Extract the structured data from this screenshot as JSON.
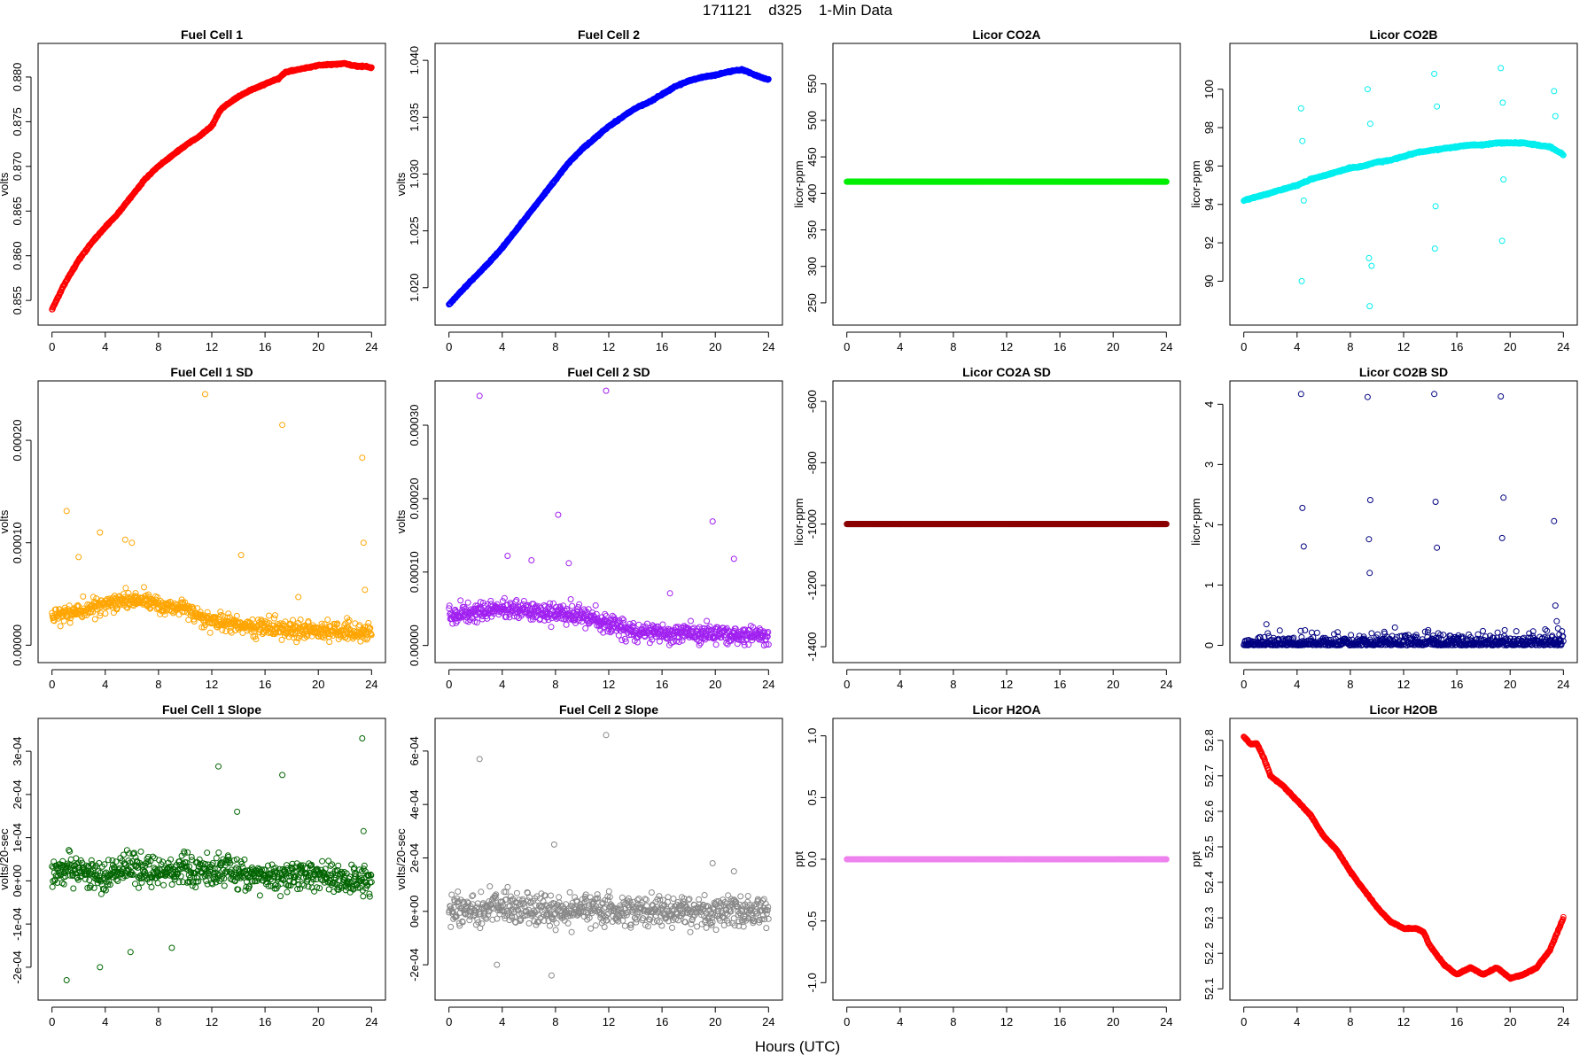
{
  "figure": {
    "title": "171121    d325    1-Min Data",
    "xlabel": "Hours (UTC)"
  },
  "chart_data": [
    {
      "type": "scatter",
      "title": "Fuel Cell 1",
      "xlabel": "",
      "ylabel": "volts",
      "color": "#ff0000",
      "xlim": [
        0,
        24
      ],
      "xticks": [
        0,
        4,
        8,
        12,
        16,
        20,
        24
      ],
      "ylim": [
        0.8535,
        0.8825
      ],
      "yticks": [
        0.855,
        0.86,
        0.865,
        0.87,
        0.875,
        0.88
      ],
      "ytick_labels": [
        "0.855",
        "0.860",
        "0.865",
        "0.870",
        "0.875",
        "0.880"
      ],
      "series": [
        {
          "x": [
            0,
            1,
            2,
            3,
            4,
            5,
            6,
            7,
            8,
            9,
            10,
            11,
            12,
            12.6,
            13,
            14,
            15,
            16,
            17,
            17.5,
            18,
            19,
            20,
            21,
            22,
            22.5,
            23,
            23.5,
            24
          ],
          "y": [
            0.854,
            0.857,
            0.8595,
            0.8615,
            0.8632,
            0.8648,
            0.8667,
            0.8686,
            0.87,
            0.8712,
            0.8723,
            0.8733,
            0.8745,
            0.8762,
            0.8768,
            0.8778,
            0.8786,
            0.8792,
            0.8798,
            0.8805,
            0.8807,
            0.881,
            0.8813,
            0.8814,
            0.8815,
            0.8813,
            0.8812,
            0.8812,
            0.881
          ]
        }
      ]
    },
    {
      "type": "scatter",
      "title": "Fuel Cell 2",
      "xlabel": "",
      "ylabel": "volts",
      "color": "#0000ff",
      "xlim": [
        0,
        24
      ],
      "xticks": [
        0,
        4,
        8,
        12,
        16,
        20,
        24
      ],
      "ylim": [
        1.0177,
        1.0405
      ],
      "yticks": [
        1.02,
        1.025,
        1.03,
        1.035,
        1.04
      ],
      "ytick_labels": [
        "1.020",
        "1.025",
        "1.030",
        "1.035",
        "1.040"
      ],
      "series": [
        {
          "x": [
            0,
            1,
            2,
            3,
            4,
            5,
            6,
            7,
            8,
            9,
            10,
            11,
            12,
            13,
            14,
            15,
            16,
            17,
            18,
            19,
            20,
            21,
            22,
            23,
            24
          ],
          "y": [
            1.0185,
            1.0198,
            1.021,
            1.0222,
            1.0235,
            1.025,
            1.0265,
            1.028,
            1.0295,
            1.031,
            1.0322,
            1.0332,
            1.0342,
            1.035,
            1.0358,
            1.0363,
            1.037,
            1.0377,
            1.0382,
            1.0385,
            1.0387,
            1.039,
            1.0392,
            1.0387,
            1.0383
          ]
        }
      ]
    },
    {
      "type": "scatter",
      "title": "Licor CO2A",
      "xlabel": "",
      "ylabel": "licor-ppm",
      "color": "#00ee00",
      "xlim": [
        0,
        24
      ],
      "xticks": [
        0,
        4,
        8,
        12,
        16,
        20,
        24
      ],
      "ylim": [
        235,
        590
      ],
      "yticks": [
        250,
        300,
        350,
        400,
        450,
        500,
        550
      ],
      "ytick_labels": [
        "250",
        "300",
        "350",
        "400",
        "450",
        "500",
        "550"
      ],
      "series": [
        {
          "x": [
            0,
            24
          ],
          "y": [
            416,
            416
          ]
        }
      ]
    },
    {
      "type": "scatter",
      "title": "Licor CO2B",
      "xlabel": "",
      "ylabel": "licor-ppm",
      "color": "#00eeee",
      "xlim": [
        0,
        24
      ],
      "xticks": [
        0,
        4,
        8,
        12,
        16,
        20,
        24
      ],
      "ylim": [
        88.3,
        101.8
      ],
      "yticks": [
        90,
        92,
        94,
        96,
        98,
        100
      ],
      "ytick_labels": [
        "90",
        "92",
        "94",
        "96",
        "98",
        "100"
      ],
      "series": [
        {
          "x": [
            0,
            1,
            2,
            3,
            4,
            5,
            6,
            7,
            8,
            9,
            10,
            11,
            12,
            13,
            14,
            15,
            16,
            17,
            18,
            19,
            20,
            21,
            22,
            23,
            24
          ],
          "y": [
            94.2,
            94.4,
            94.6,
            94.8,
            95.0,
            95.3,
            95.5,
            95.7,
            95.9,
            96.0,
            96.2,
            96.3,
            96.5,
            96.7,
            96.8,
            96.9,
            97.0,
            97.1,
            97.1,
            97.2,
            97.2,
            97.2,
            97.1,
            97.0,
            96.6
          ]
        }
      ],
      "outliers": {
        "x": [
          4.3,
          4.35,
          4.4,
          4.5,
          9.3,
          9.4,
          9.45,
          9.5,
          9.6,
          14.3,
          14.35,
          14.4,
          14.5,
          19.3,
          19.4,
          19.45,
          19.5,
          23.3,
          23.4
        ],
        "y": [
          99.0,
          90.0,
          97.3,
          94.2,
          100.0,
          91.2,
          88.7,
          98.2,
          90.8,
          100.8,
          91.7,
          93.9,
          99.1,
          101.1,
          92.1,
          99.3,
          95.3,
          99.9,
          98.6
        ]
      }
    },
    {
      "type": "scatter",
      "title": "Fuel Cell 1 SD",
      "xlabel": "",
      "ylabel": "volts",
      "color": "#ffa500",
      "xlim": [
        0,
        24
      ],
      "xticks": [
        0,
        4,
        8,
        12,
        16,
        20,
        24
      ],
      "ylim": [
        -6e-06,
        0.000247
      ],
      "yticks": [
        0.0,
        0.0001,
        0.0002
      ],
      "ytick_labels": [
        "0.00000",
        "0.00010",
        "0.00020"
      ],
      "series": [
        {
          "x": [
            0,
            2,
            4,
            6,
            8,
            10,
            12,
            14,
            16,
            18,
            20,
            22,
            24
          ],
          "y": [
            3e-05,
            3.3e-05,
            4e-05,
            4.5e-05,
            4e-05,
            3.5e-05,
            2.5e-05,
            2e-05,
            1.7e-05,
            1.5e-05,
            1.4e-05,
            1.3e-05,
            1.2e-05
          ]
        }
      ],
      "outliers": {
        "x": [
          1.1,
          2.0,
          3.6,
          5.5,
          6.0,
          11.5,
          14.2,
          17.3,
          18.5,
          23.3,
          23.4,
          23.5
        ],
        "y": [
          0.000131,
          8.6e-05,
          0.00011,
          0.000103,
          0.0001,
          0.000245,
          8.8e-05,
          0.000215,
          4.7e-05,
          0.000183,
          0.0001,
          5.4e-05
        ]
      }
    },
    {
      "type": "scatter",
      "title": "Fuel Cell 2 SD",
      "xlabel": "",
      "ylabel": "volts",
      "color": "#a020f0",
      "xlim": [
        0,
        24
      ],
      "xticks": [
        0,
        4,
        8,
        12,
        16,
        20,
        24
      ],
      "ylim": [
        -8e-06,
        0.000345
      ],
      "yticks": [
        0.0,
        0.0001,
        0.0002,
        0.0003
      ],
      "ytick_labels": [
        "0.00000",
        "0.00010",
        "0.00020",
        "0.00030"
      ],
      "series": [
        {
          "x": [
            0,
            2,
            4,
            6,
            8,
            10,
            12,
            14,
            16,
            18,
            20,
            22,
            24
          ],
          "y": [
            4e-05,
            4.5e-05,
            5e-05,
            4.8e-05,
            4.5e-05,
            4e-05,
            3e-05,
            2e-05,
            1.8e-05,
            1.6e-05,
            1.5e-05,
            1.4e-05,
            1.3e-05
          ]
        }
      ],
      "outliers": {
        "x": [
          2.3,
          4.4,
          6.2,
          8.2,
          9.0,
          11.8,
          16.6,
          19.8,
          21.4
        ],
        "y": [
          0.00034,
          0.000122,
          0.000116,
          0.000178,
          0.000112,
          0.000347,
          7.1e-05,
          0.000169,
          0.000118
        ]
      }
    },
    {
      "type": "scatter",
      "title": "Licor CO2A SD",
      "xlabel": "",
      "ylabel": "licor-ppm",
      "color": "#8b0000",
      "xlim": [
        0,
        24
      ],
      "xticks": [
        0,
        4,
        8,
        12,
        16,
        20,
        24
      ],
      "ylim": [
        -1415,
        -570
      ],
      "yticks": [
        -1400,
        -1200,
        -1000,
        -800,
        -600
      ],
      "ytick_labels": [
        "-1400",
        "-1200",
        "-1000",
        "-800",
        "-600"
      ],
      "series": [
        {
          "x": [
            0,
            24
          ],
          "y": [
            -1000,
            -1000
          ]
        }
      ]
    },
    {
      "type": "scatter",
      "title": "Licor CO2B SD",
      "xlabel": "",
      "ylabel": "licor-ppm",
      "color": "#000080",
      "xlim": [
        0,
        24
      ],
      "xticks": [
        0,
        4,
        8,
        12,
        16,
        20,
        24
      ],
      "ylim": [
        -0.1,
        4.2
      ],
      "yticks": [
        0,
        1,
        2,
        3,
        4
      ],
      "ytick_labels": [
        "0",
        "1",
        "2",
        "3",
        "4"
      ],
      "series": [
        {
          "x": [
            0,
            4,
            8,
            12,
            16,
            20,
            24
          ],
          "y": [
            0.02,
            0.03,
            0.03,
            0.04,
            0.04,
            0.04,
            0.05
          ]
        }
      ],
      "outliers": {
        "x": [
          1.7,
          1.8,
          4.3,
          4.4,
          4.5,
          4.6,
          9.3,
          9.4,
          9.45,
          9.5,
          9.6,
          14.3,
          14.4,
          14.5,
          14.6,
          19.3,
          19.4,
          19.5,
          23.3,
          23.4,
          23.5,
          23.6,
          23.7
        ],
        "y": [
          0.35,
          0.2,
          4.17,
          2.28,
          1.64,
          0.25,
          4.12,
          1.76,
          1.2,
          2.41,
          0.2,
          4.17,
          2.38,
          1.62,
          0.2,
          4.13,
          1.78,
          2.45,
          2.06,
          0.66,
          0.4,
          0.28,
          0.18
        ]
      }
    },
    {
      "type": "scatter",
      "title": "Fuel Cell 1 Slope",
      "xlabel": "",
      "ylabel": "volts/20-sec",
      "color": "#006400",
      "xlim": [
        0,
        24
      ],
      "xticks": [
        0,
        4,
        8,
        12,
        16,
        20,
        24
      ],
      "ylim": [
        -0.00025,
        0.00035
      ],
      "yticks": [
        -0.0002,
        -0.0001,
        0.0,
        0.0001,
        0.0002,
        0.0003
      ],
      "ytick_labels": [
        "-2e-04",
        "-1e-04",
        "0e+00",
        "1e-04",
        "2e-04",
        "3e-04"
      ],
      "series": [
        {
          "x": [
            0,
            2,
            4,
            6,
            8,
            10,
            12,
            14,
            16,
            18,
            20,
            22,
            24
          ],
          "y": [
            2e-05,
            3e-05,
            1e-05,
            4e-05,
            1e-05,
            3e-05,
            2e-05,
            2e-05,
            1e-05,
            1e-05,
            1e-05,
            5e-06,
            5e-06
          ]
        }
      ],
      "outliers": {
        "x": [
          1.1,
          3.6,
          12.5,
          13.9,
          17.3,
          23.3,
          23.4,
          5.9,
          9.0
        ],
        "y": [
          -0.00023,
          -0.0002,
          0.000265,
          0.00016,
          0.000245,
          0.00033,
          0.000115,
          -0.000165,
          -0.000155
        ]
      }
    },
    {
      "type": "scatter",
      "title": "Fuel Cell 2 Slope",
      "xlabel": "",
      "ylabel": "volts/20-sec",
      "color": "#888888",
      "xlim": [
        0,
        24
      ],
      "xticks": [
        0,
        4,
        8,
        12,
        16,
        20,
        24
      ],
      "ylim": [
        -0.00029,
        0.00068
      ],
      "yticks": [
        -0.0002,
        0.0,
        0.0002,
        0.0004,
        0.0006
      ],
      "ytick_labels": [
        "-2e-04",
        "0e+00",
        "2e-04",
        "4e-04",
        "6e-04"
      ],
      "series": [
        {
          "x": [
            0,
            2,
            4,
            6,
            8,
            10,
            12,
            14,
            16,
            18,
            20,
            22,
            24
          ],
          "y": [
            0.0,
            1e-05,
            2e-05,
            1e-05,
            0.0,
            1e-05,
            0.0,
            0.0,
            0.0,
            0.0,
            0.0,
            0.0,
            0.0
          ]
        }
      ],
      "outliers": {
        "x": [
          2.3,
          11.8,
          7.9,
          19.8,
          21.4,
          7.7,
          3.6
        ],
        "y": [
          0.00057,
          0.00066,
          0.00025,
          0.00018,
          0.00015,
          -0.00024,
          -0.0002
        ]
      }
    },
    {
      "type": "scatter",
      "title": "Licor H2OA",
      "xlabel": "",
      "ylabel": "ppt",
      "color": "#ee82ee",
      "xlim": [
        0,
        24
      ],
      "xticks": [
        0,
        4,
        8,
        12,
        16,
        20,
        24
      ],
      "ylim": [
        -1.05,
        1.05
      ],
      "yticks": [
        -1.0,
        -0.5,
        0.0,
        0.5,
        1.0
      ],
      "ytick_labels": [
        "-1.0",
        "-0.5",
        "0.0",
        "0.5",
        "1.0"
      ],
      "series": [
        {
          "x": [
            0,
            24
          ],
          "y": [
            0.0,
            0.0
          ]
        }
      ]
    },
    {
      "type": "scatter",
      "title": "Licor H2OB",
      "xlabel": "",
      "ylabel": "ppt",
      "color": "#ff0000",
      "xlim": [
        0,
        24
      ],
      "xticks": [
        0,
        4,
        8,
        12,
        16,
        20,
        24
      ],
      "ylim": [
        52.1,
        52.83
      ],
      "yticks": [
        52.1,
        52.2,
        52.3,
        52.4,
        52.5,
        52.6,
        52.7,
        52.8
      ],
      "ytick_labels": [
        "52.1",
        "52.2",
        "52.3",
        "52.4",
        "52.5",
        "52.6",
        "52.7",
        "52.8"
      ],
      "series": [
        {
          "x": [
            0,
            0.5,
            1,
            1.5,
            2,
            3,
            4,
            5,
            6,
            7,
            8,
            9,
            10,
            11,
            12,
            13,
            13.5,
            14,
            15,
            16,
            17,
            18,
            19,
            20,
            21,
            22,
            23,
            24
          ],
          "y": [
            52.81,
            52.79,
            52.79,
            52.75,
            52.7,
            52.67,
            52.63,
            52.59,
            52.53,
            52.49,
            52.43,
            52.38,
            52.33,
            52.29,
            52.27,
            52.27,
            52.26,
            52.22,
            52.17,
            52.14,
            52.16,
            52.14,
            52.16,
            52.13,
            52.14,
            52.16,
            52.21,
            52.3
          ]
        }
      ]
    }
  ]
}
